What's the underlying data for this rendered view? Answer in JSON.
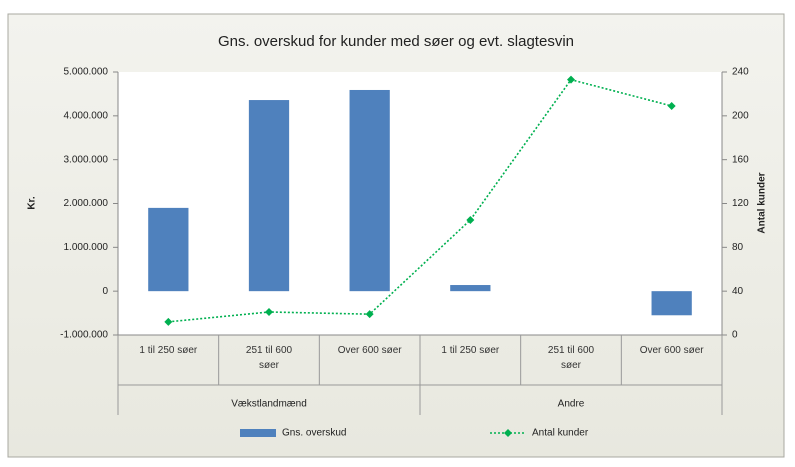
{
  "chart_data": {
    "type": "bar",
    "title": "Gns. overskud for kunder med søer og evt. slagtesvin",
    "categories": [
      "1 til 250 søer",
      "251 til 600 søer",
      "Over 600 søer",
      "1 til 250 søer",
      "251 til 600 søer",
      "Over 600 søer"
    ],
    "groups": [
      "Vækstlandmænd",
      "Andre"
    ],
    "series": [
      {
        "name": "Gns. overskud",
        "type": "bar",
        "color": "#4f81bd",
        "values": [
          1900000,
          4360000,
          4590000,
          140000,
          0,
          -550000
        ]
      },
      {
        "name": "Antal kunder",
        "type": "line",
        "color": "#00b050",
        "axis": "y2",
        "values": [
          12,
          21,
          19,
          105,
          233,
          209
        ]
      }
    ],
    "ylabel": "Kr.",
    "y2label": "Antal kunder",
    "ylim": [
      -1000000,
      5000000
    ],
    "yticks": [
      {
        "value": -1000000,
        "label": "-1.000.000"
      },
      0,
      {
        "value": 1000000,
        "label": "1.000.000"
      },
      {
        "value": 2000000,
        "label": "2.000.000"
      },
      {
        "value": 3000000,
        "label": "3.000.000"
      },
      {
        "value": 4000000,
        "label": "4.000.000"
      },
      {
        "value": 5000000,
        "label": "5.000.000"
      }
    ],
    "y2lim": [
      0,
      240
    ],
    "y2ticks": [
      0,
      40,
      80,
      120,
      160,
      200,
      240
    ],
    "legend": "bottom"
  }
}
